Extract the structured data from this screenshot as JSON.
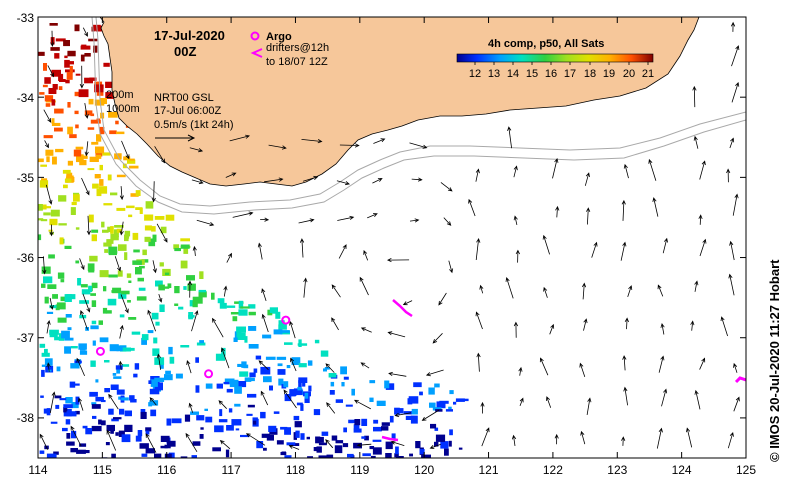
{
  "map": {
    "date": "17-Jul-2020",
    "hour": "00Z",
    "legend_argo": "Argo",
    "legend_drifters_1": "drifters@12h",
    "legend_drifters_2": "to 18/07 12Z",
    "isobath_1": "200m",
    "isobath_2": "1000m",
    "product_1": "NRT00 GSL",
    "product_2": "17-Jul 06:00Z",
    "scale_label": "0.5m/s (1kt 24h)",
    "colorbar_title": "4h comp, p50, All Sats",
    "colorbar_ticks": [
      "12",
      "13",
      "14",
      "15",
      "16",
      "17",
      "18",
      "19",
      "20",
      "21"
    ],
    "credit": "© IMOS 20-Jul-2020 11:27 Hobart",
    "lon_ticks": [
      "114",
      "115",
      "116",
      "117",
      "118",
      "119",
      "120",
      "121",
      "122",
      "123",
      "124",
      "125"
    ],
    "lat_ticks": [
      "-33",
      "-34",
      "-35",
      "-36",
      "-37",
      "-38"
    ],
    "lon_range": [
      114,
      125
    ],
    "lat_range": [
      -38.5,
      -33
    ],
    "argo_floats": [
      {
        "lon": 117.85,
        "lat": -36.78
      },
      {
        "lon": 114.97,
        "lat": -37.17
      },
      {
        "lon": 116.65,
        "lat": -37.45
      }
    ],
    "colors": {
      "land": "#f6c79a",
      "argo": "#ff00ff",
      "drifter": "#ff00ff",
      "colorbar": [
        "#00008f",
        "#0030ff",
        "#00a0ff",
        "#00e0c0",
        "#30d040",
        "#a0e020",
        "#e0e000",
        "#ffb000",
        "#ff5000",
        "#c00000",
        "#800000"
      ]
    }
  }
}
